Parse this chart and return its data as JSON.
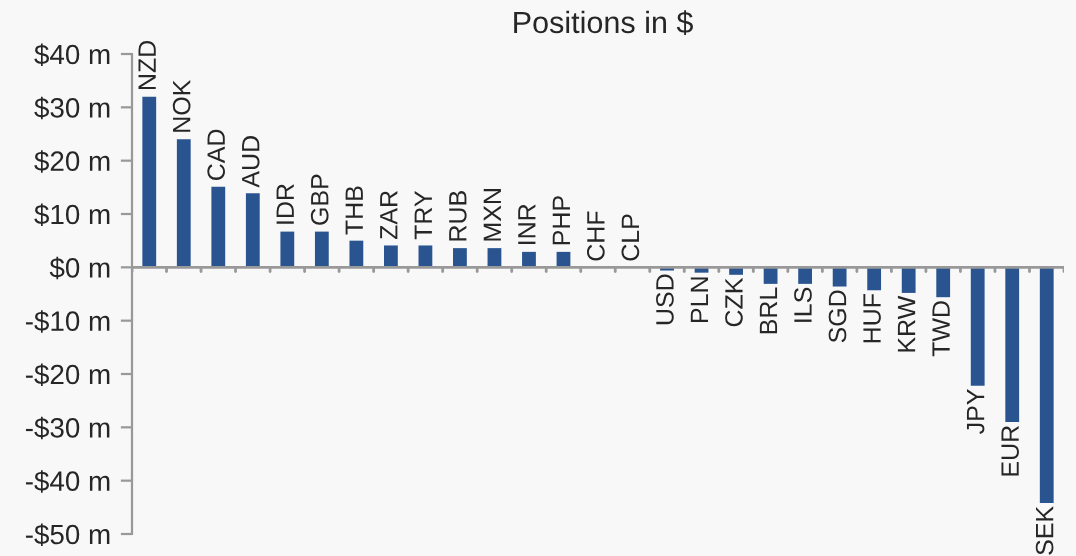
{
  "chart_data": {
    "type": "bar",
    "title": "Positions in $",
    "categories": [
      "NZD",
      "NOK",
      "CAD",
      "AUD",
      "IDR",
      "GBP",
      "THB",
      "ZAR",
      "TRY",
      "RUB",
      "MXN",
      "INR",
      "PHP",
      "CHF",
      "CLP",
      "USD",
      "PLN",
      "CZK",
      "BRL",
      "ILS",
      "SGD",
      "HUF",
      "KRW",
      "TWD",
      "JPY",
      "EUR",
      "SEK"
    ],
    "values": [
      32,
      24,
      15.1,
      13.9,
      6.7,
      6.7,
      5,
      4.1,
      4.1,
      3.6,
      3.6,
      2.9,
      2.9,
      0,
      0,
      -0.6,
      -1,
      -1.4,
      -3.1,
      -3.1,
      -3.6,
      -4.3,
      -4.8,
      -5.6,
      -22.2,
      -29,
      -44.2
    ],
    "color": "#2a5490",
    "ylim": [
      -50,
      40
    ],
    "yticks": [
      {
        "value": -50,
        "label": "-$50 m"
      },
      {
        "value": -40,
        "label": "-$40 m"
      },
      {
        "value": -30,
        "label": "-$30 m"
      },
      {
        "value": -20,
        "label": "-$20 m"
      },
      {
        "value": -10,
        "label": "-$10 m"
      },
      {
        "value": 0,
        "label": "$0 m"
      },
      {
        "value": 10,
        "label": "$10 m"
      },
      {
        "value": 20,
        "label": "$20 m"
      },
      {
        "value": 30,
        "label": "$30 m"
      },
      {
        "value": 40,
        "label": "$40 m"
      }
    ],
    "grid": false,
    "legend": false
  }
}
